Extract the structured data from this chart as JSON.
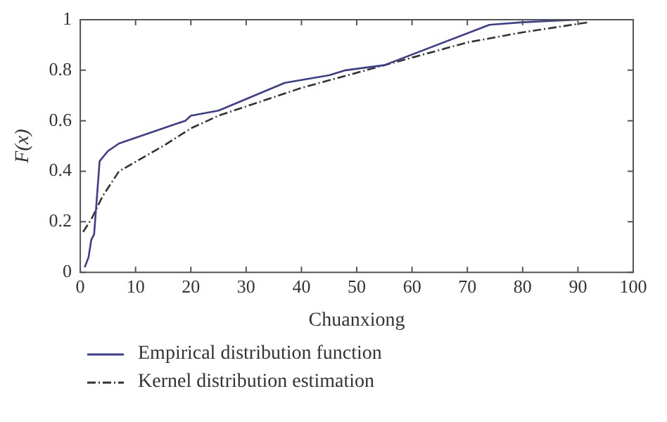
{
  "chart_data": {
    "type": "line",
    "xlabel": "Chuanxiong",
    "ylabel": "F(x)",
    "xlim": [
      0,
      100
    ],
    "xticks": [
      0,
      10,
      20,
      30,
      40,
      50,
      60,
      70,
      80,
      90,
      100
    ],
    "ylim": [
      0,
      1
    ],
    "yticks": [
      0,
      0.2,
      0.4,
      0.6,
      0.8,
      1
    ],
    "grid": false,
    "legend": "bottom",
    "marker": "none",
    "series": [
      {
        "name": "Empirical distribution function",
        "color": "#3d3d8f",
        "line_style": "solid",
        "x": [
          0.8,
          1.5,
          2,
          2.5,
          3.5,
          5,
          7,
          19,
          20,
          25,
          37,
          45,
          48,
          55,
          74,
          80,
          90
        ],
        "values": [
          0.02,
          0.06,
          0.13,
          0.15,
          0.44,
          0.48,
          0.51,
          0.6,
          0.62,
          0.64,
          0.75,
          0.78,
          0.8,
          0.82,
          0.98,
          0.99,
          1.0
        ]
      },
      {
        "name": "Kernel distribution estimation",
        "color": "#333333",
        "line_style": "dashdot",
        "x": [
          0.5,
          2,
          4,
          7,
          15,
          20,
          25,
          40,
          55,
          70,
          80,
          92
        ],
        "values": [
          0.16,
          0.21,
          0.3,
          0.4,
          0.5,
          0.57,
          0.62,
          0.73,
          0.82,
          0.91,
          0.95,
          0.99
        ]
      }
    ]
  }
}
